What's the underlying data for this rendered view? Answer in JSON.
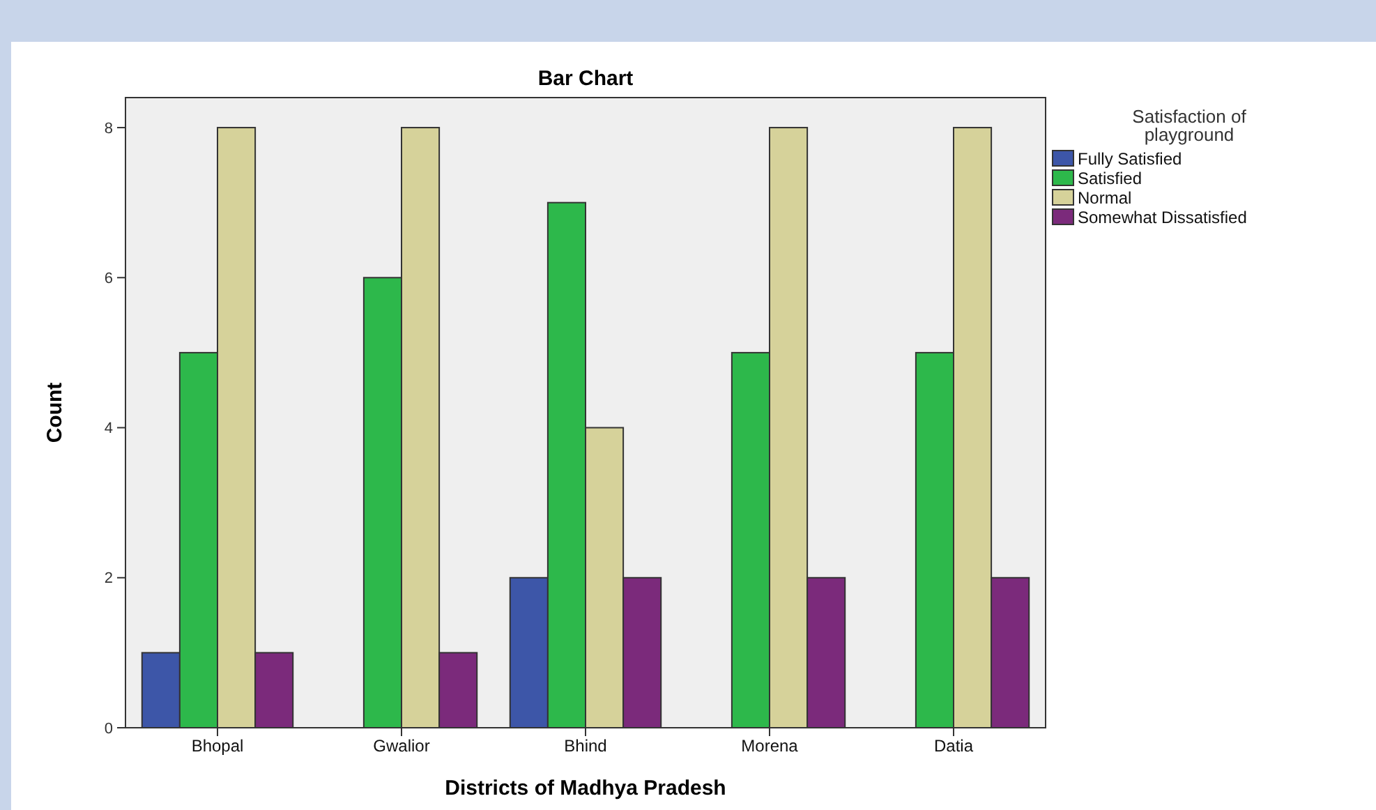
{
  "chart_data": {
    "type": "bar",
    "title": "Bar Chart",
    "xlabel": "Districts of Madhya Pradesh",
    "ylabel": "Count",
    "legend_title": "Satisfaction of playground",
    "categories": [
      "Bhopal",
      "Gwalior",
      "Bhind",
      "Morena",
      "Datia"
    ],
    "series": [
      {
        "name": "Fully Satisfied",
        "color": "#3d56a8",
        "values": [
          1,
          null,
          2,
          null,
          null
        ]
      },
      {
        "name": "Satisfied",
        "color": "#2db84b",
        "values": [
          5,
          6,
          7,
          5,
          5
        ]
      },
      {
        "name": "Normal",
        "color": "#d6d29a",
        "values": [
          8,
          8,
          4,
          8,
          8
        ]
      },
      {
        "name": "Somewhat Dissatisfied",
        "color": "#7b2a7b",
        "values": [
          1,
          1,
          2,
          2,
          2
        ]
      }
    ],
    "ylim": [
      0,
      8.4
    ],
    "yticks": [
      0,
      2,
      4,
      6,
      8
    ],
    "grid": false,
    "legend": "right"
  }
}
